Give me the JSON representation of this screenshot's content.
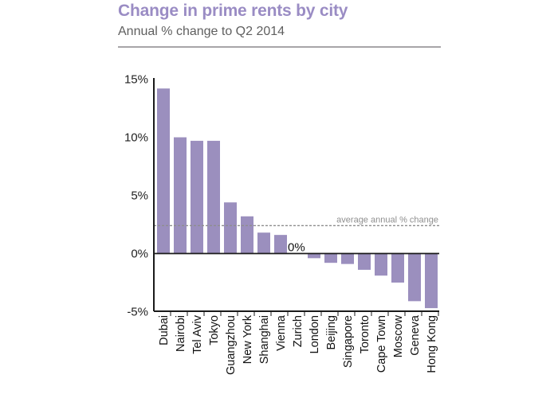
{
  "header": {
    "title": "Change in prime rents by city",
    "subtitle": "Annual % change to Q2 2014"
  },
  "colors": {
    "title": "#9a8cc4",
    "bar": "#9b8fbe",
    "axis": "#1a1a1a",
    "average_line": "#8e8e8e"
  },
  "chart_data": {
    "type": "bar",
    "title": "Change in prime rents by city",
    "subtitle": "Annual % change to Q2 2014",
    "xlabel": "",
    "ylabel": "",
    "ylim": [
      -5,
      15
    ],
    "yticks": [
      -5,
      0,
      5,
      10,
      15
    ],
    "ytick_labels": [
      "-5%",
      "0%",
      "5%",
      "10%",
      "15%"
    ],
    "grid": false,
    "categories": [
      "Dubai",
      "Nairobi",
      "Tel Aviv",
      "Tokyo",
      "Guangzhou",
      "New York",
      "Shanghai",
      "Vienna",
      "Zurich",
      "London",
      "Beijing",
      "Singapore",
      "Toronto",
      "Cape Town",
      "Moscow",
      "Geneva",
      "Hong Kong"
    ],
    "values": [
      14.2,
      10.0,
      9.7,
      9.7,
      4.4,
      3.2,
      1.8,
      1.6,
      0.0,
      -0.4,
      -0.8,
      -0.9,
      -1.4,
      -1.9,
      -2.5,
      -4.1,
      -4.7
    ],
    "annotations": [
      {
        "text": "0%",
        "category": "Zurich",
        "value": 0.0
      },
      {
        "text": "average annual % change",
        "type": "reference-line",
        "value": 2.4
      }
    ],
    "average_annual_change": 2.4
  }
}
